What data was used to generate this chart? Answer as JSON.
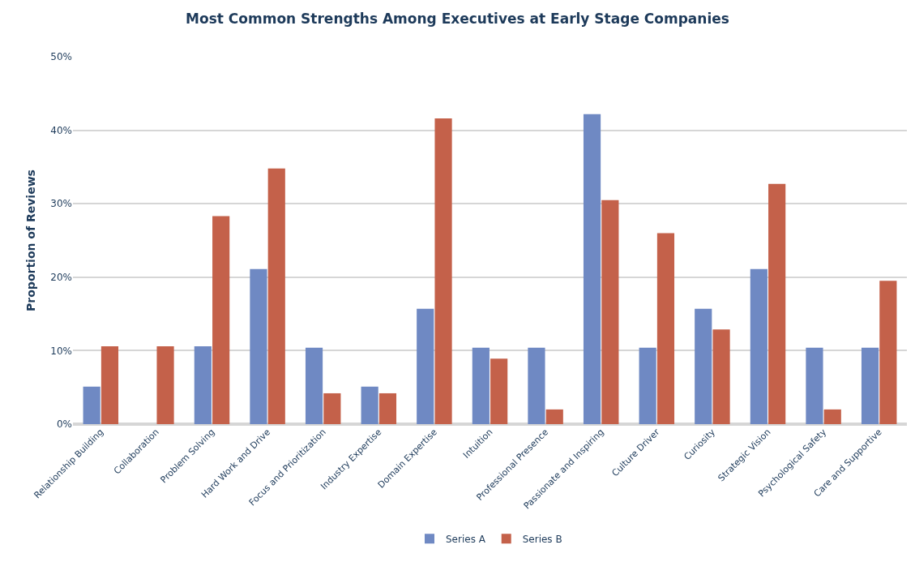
{
  "chart_data": {
    "type": "bar",
    "title": "Most Common Strengths Among Executives at Early Stage Companies",
    "ylabel": "Proportion of Reviews",
    "categories": [
      "Relationship Building",
      "Collaboration",
      "Problem Solving",
      "Hard Work and Drive",
      "Focus and Prioritization",
      "Industry Expertise",
      "Domain Expertise",
      "Intuition",
      "Professional Presence",
      "Passionate and Inspiring",
      "Culture Driver",
      "Curiosity",
      "Strategic Vision",
      "Psychological Safety",
      "Care and Supportive"
    ],
    "series": [
      {
        "name": "Series A",
        "color": "#6f89c3",
        "values": [
          5.1,
          0,
          10.6,
          21.1,
          10.4,
          5.1,
          15.7,
          10.4,
          10.4,
          42.2,
          10.4,
          15.7,
          21.1,
          10.4,
          10.4
        ]
      },
      {
        "name": "Series B",
        "color": "#c4614a",
        "values": [
          10.6,
          10.6,
          28.3,
          34.8,
          4.2,
          4.2,
          41.6,
          8.9,
          2.0,
          30.5,
          26.0,
          12.9,
          32.7,
          2.0,
          19.5
        ]
      }
    ],
    "ylim": [
      0,
      50
    ],
    "yticks": [
      {
        "value": 0,
        "label": "0%"
      },
      {
        "value": 10,
        "label": "10%"
      },
      {
        "value": 20,
        "label": "20%"
      },
      {
        "value": 30,
        "label": "30%"
      },
      {
        "value": 40,
        "label": "40%"
      },
      {
        "value": 50,
        "label": "50%"
      }
    ],
    "grid": "y",
    "legend": "bottom"
  }
}
